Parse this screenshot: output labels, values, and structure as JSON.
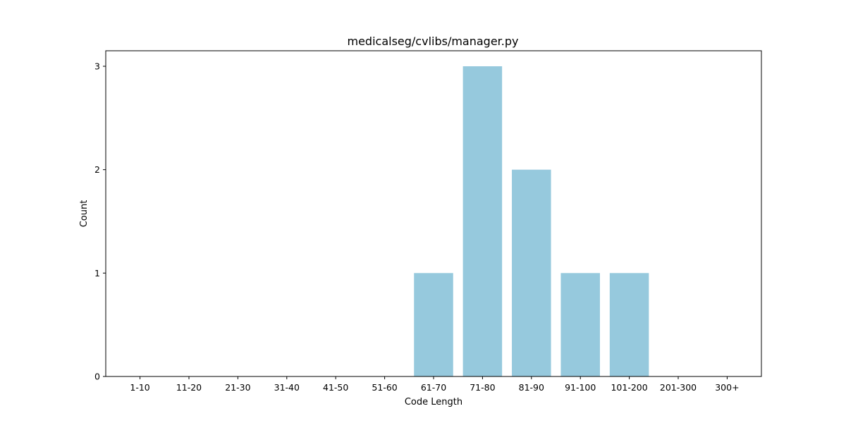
{
  "chart_data": {
    "type": "bar",
    "title": "medicalseg/cvlibs/manager.py",
    "xlabel": "Code Length",
    "ylabel": "Count",
    "categories": [
      "1-10",
      "11-20",
      "21-30",
      "31-40",
      "41-50",
      "51-60",
      "61-70",
      "71-80",
      "81-90",
      "91-100",
      "101-200",
      "201-300",
      "300+"
    ],
    "values": [
      0,
      0,
      0,
      0,
      0,
      0,
      1,
      3,
      2,
      1,
      1,
      0,
      0
    ],
    "yticks": [
      0,
      1,
      2,
      3
    ],
    "ylim": [
      0,
      3.15
    ],
    "bar_color": "#96c9dd",
    "grid": false,
    "legend": "none"
  }
}
